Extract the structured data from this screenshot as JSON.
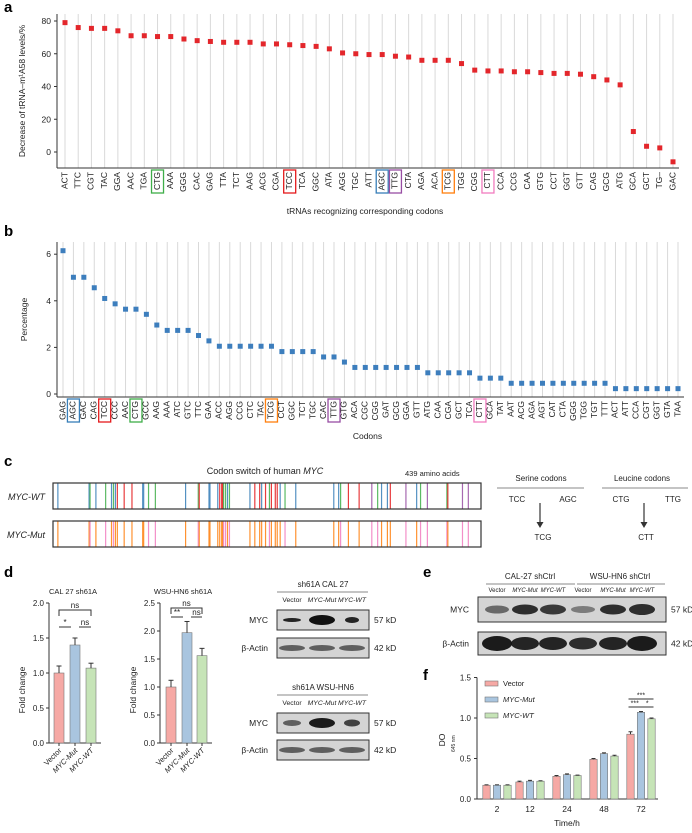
{
  "panel_labels": [
    "a",
    "b",
    "c",
    "d",
    "e",
    "f"
  ],
  "colors": {
    "marker_a": "#e3262b",
    "marker_b": "#3d7ebd",
    "TCC": "#e41a1c",
    "AGC": "#377eb8",
    "CTG": "#3fae49",
    "TTG": "#984ea3",
    "TCG": "#ff7f0e",
    "CTT": "#f17cbf",
    "bar_vector": "#f6a9a5",
    "bar_mut": "#a9c5df",
    "bar_wt": "#c6e4b7"
  },
  "chart_data": [
    {
      "type": "scatter",
      "title": "",
      "ylabel": "Decrease of tRNA–m¹A58 levels/%",
      "xlabel": "tRNAs recognizing corresponding codons",
      "ylim": [
        -10,
        83
      ],
      "yticks": [
        "0",
        "20",
        "40",
        "60",
        "80"
      ],
      "ytick_values": [
        0,
        20,
        40,
        60,
        80
      ],
      "grid": "vertical",
      "categories": [
        "ACT",
        "TTC",
        "CGT",
        "TAC",
        "GGA",
        "AAC",
        "TGA",
        "CTG",
        "AAA",
        "GGG",
        "CAC",
        "GAG",
        "TTA",
        "TCT",
        "AAG",
        "ACG",
        "CGA",
        "TCC",
        "TCA",
        "GGC",
        "ATA",
        "AGG",
        "TGC",
        "ATT",
        "AGC",
        "TTG",
        "CTA",
        "AGA",
        "ACA",
        "TCG",
        "TGG",
        "CGG",
        "CTT",
        "CCA",
        "CCG",
        "CAA",
        "GTG",
        "CCT",
        "GGT",
        "GTT",
        "CAG",
        "GCG",
        "ATG",
        "GCA",
        "GCT",
        "TG–",
        "GAC"
      ],
      "values": [
        79,
        76,
        75.5,
        75.5,
        74,
        71,
        71,
        70.5,
        70.5,
        69,
        68,
        67.5,
        67,
        67,
        67,
        66,
        66,
        65.5,
        65,
        64.5,
        63,
        60.5,
        60,
        59.5,
        59.5,
        58.5,
        58,
        56,
        56,
        56,
        54,
        50,
        49.5,
        49.5,
        49,
        49,
        48.5,
        48,
        48,
        47.5,
        46,
        44,
        41,
        12.5,
        3.5,
        2.5,
        -6
      ],
      "highlighted": [
        "CTG",
        "TCC",
        "AGC",
        "TTG",
        "TCG",
        "CTT"
      ]
    },
    {
      "type": "scatter",
      "title": "",
      "ylabel": "Percentage",
      "xlabel": "Codons",
      "ylim": [
        0,
        6.5
      ],
      "yticks": [
        "0",
        "2",
        "4",
        "6"
      ],
      "ytick_values": [
        0,
        2,
        4,
        6
      ],
      "grid": "vertical",
      "categories": [
        "GAG",
        "AGC",
        "GAC",
        "CAG",
        "TCC",
        "CCC",
        "AAC",
        "CTG",
        "GCC",
        "AAG",
        "AAA",
        "ATC",
        "GTC",
        "TTC",
        "GAA",
        "ACC",
        "AGG",
        "CCG",
        "CTC",
        "TAC",
        "TCG",
        "CCT",
        "GGC",
        "TCT",
        "TGC",
        "CAC",
        "TTG",
        "GTG",
        "ACA",
        "CGC",
        "CGG",
        "GAT",
        "GCG",
        "GGA",
        "GTT",
        "ATG",
        "CAA",
        "CGA",
        "GCT",
        "TCA",
        "CTT",
        "GCA",
        "TAT",
        "AAT",
        "ACG",
        "AGA",
        "AGT",
        "CAT",
        "CTA",
        "GGG",
        "TGG",
        "TGT",
        "TTT",
        "ACT",
        "ATT",
        "CCA",
        "CGT",
        "GGT",
        "GTA",
        "TAA"
      ],
      "values": [
        6.15,
        5.01,
        5.01,
        4.56,
        4.1,
        3.87,
        3.64,
        3.64,
        3.42,
        2.96,
        2.73,
        2.73,
        2.73,
        2.51,
        2.28,
        2.05,
        2.05,
        2.05,
        2.05,
        2.05,
        2.05,
        1.82,
        1.82,
        1.82,
        1.82,
        1.59,
        1.59,
        1.37,
        1.14,
        1.14,
        1.14,
        1.14,
        1.14,
        1.14,
        1.14,
        0.91,
        0.91,
        0.91,
        0.91,
        0.91,
        0.68,
        0.68,
        0.68,
        0.46,
        0.46,
        0.46,
        0.46,
        0.46,
        0.46,
        0.46,
        0.46,
        0.46,
        0.46,
        0.23,
        0.23,
        0.23,
        0.23,
        0.23,
        0.23,
        0.23
      ],
      "highlighted": [
        "AGC",
        "TCC",
        "CTG",
        "TCG",
        "TTG",
        "CTT"
      ]
    },
    {
      "type": "bar",
      "title": "CAL 27 sh61A",
      "ylabel": "Fold change",
      "categories": [
        "Vector",
        "MYC-Mut",
        "MYC-WT"
      ],
      "values": [
        1.0,
        1.4,
        1.07
      ],
      "errors": [
        0.1,
        0.1,
        0.07
      ],
      "ylim": [
        0,
        2.0
      ],
      "yticks": [
        "0.0",
        "0.5",
        "1.0",
        "1.5",
        "2.0"
      ],
      "ytick_values": [
        0,
        0.5,
        1.0,
        1.5,
        2.0
      ],
      "significance": [
        {
          "pair": [
            0,
            2
          ],
          "label": "ns",
          "level": 2
        },
        {
          "pair": [
            0,
            1
          ],
          "label": "*",
          "level": 1
        },
        {
          "pair": [
            1,
            2
          ],
          "label": "ns",
          "level": 1
        }
      ]
    },
    {
      "type": "bar",
      "title": "WSU-HN6 sh61A",
      "ylabel": "Fold change",
      "categories": [
        "Vector",
        "MYC-Mut",
        "MYC-WT"
      ],
      "values": [
        1.0,
        1.97,
        1.56
      ],
      "errors": [
        0.12,
        0.2,
        0.13
      ],
      "ylim": [
        0,
        2.5
      ],
      "yticks": [
        "0.0",
        "0.5",
        "1.0",
        "1.5",
        "2.0",
        "2.5"
      ],
      "ytick_values": [
        0,
        0.5,
        1.0,
        1.5,
        2.0,
        2.5
      ],
      "significance": [
        {
          "pair": [
            0,
            2
          ],
          "label": "ns",
          "level": 2
        },
        {
          "pair": [
            0,
            1
          ],
          "label": "**",
          "level": 1
        },
        {
          "pair": [
            1,
            2
          ],
          "label": "ns",
          "level": 1
        }
      ]
    },
    {
      "type": "bar",
      "title": "",
      "ylabel": "DO",
      "ylabel_sub": "645 nm",
      "xlabel": "Time/h",
      "categories": [
        "2",
        "12",
        "24",
        "48",
        "72"
      ],
      "series": [
        {
          "name": "Vector",
          "values": [
            0.17,
            0.21,
            0.28,
            0.49,
            0.8
          ],
          "errors": [
            0.005,
            0.01,
            0.01,
            0.01,
            0.03
          ]
        },
        {
          "name": "MYC-Mut",
          "values": [
            0.17,
            0.22,
            0.3,
            0.56,
            1.07
          ],
          "errors": [
            0.005,
            0.01,
            0.01,
            0.01,
            0.01
          ]
        },
        {
          "name": "MYC-WT",
          "values": [
            0.17,
            0.22,
            0.29,
            0.53,
            0.99
          ],
          "errors": [
            0.005,
            0.005,
            0.005,
            0.01,
            0.01
          ]
        }
      ],
      "ylim": [
        0,
        1.5
      ],
      "yticks": [
        "0.0",
        "0.5",
        "1.0",
        "1.5"
      ],
      "ytick_values": [
        0,
        0.5,
        1.0,
        1.5
      ],
      "legend": "top-left",
      "significance": [
        {
          "group": 4,
          "pair": [
            0,
            2
          ],
          "label": "***",
          "level": 2
        },
        {
          "group": 4,
          "pair": [
            0,
            1
          ],
          "label": "***",
          "level": 1
        },
        {
          "group": 4,
          "pair": [
            1,
            2
          ],
          "label": "*",
          "level": 1
        }
      ]
    }
  ],
  "codon_switch": {
    "title_prefix": "Codon switch of human ",
    "title_gene": "MYC",
    "length_label": "439 amino acids",
    "length": 439,
    "rows": [
      "MYC-WT",
      "MYC-Mut"
    ],
    "sites": [
      [
        5,
        "AGC"
      ],
      [
        37,
        "AGC"
      ],
      [
        38,
        "CTG"
      ],
      [
        44,
        "AGC"
      ],
      [
        54,
        "CTG"
      ],
      [
        60,
        "AGC"
      ],
      [
        62,
        "CTG"
      ],
      [
        64,
        "AGC"
      ],
      [
        66,
        "TCC"
      ],
      [
        73,
        "TCC"
      ],
      [
        81,
        "TCC"
      ],
      [
        92,
        "AGC"
      ],
      [
        93,
        "AGC"
      ],
      [
        98,
        "CTG"
      ],
      [
        105,
        "CTG"
      ],
      [
        136,
        "AGC"
      ],
      [
        149,
        "CTG"
      ],
      [
        150,
        "TCC"
      ],
      [
        160,
        "AGC"
      ],
      [
        161,
        "AGC"
      ],
      [
        169,
        "AGC"
      ],
      [
        171,
        "TCC"
      ],
      [
        173,
        "TCC"
      ],
      [
        174,
        "TCC"
      ],
      [
        175,
        "CTG"
      ],
      [
        177,
        "CTG"
      ],
      [
        179,
        "AGC"
      ],
      [
        181,
        "CTG"
      ],
      [
        202,
        "AGC"
      ],
      [
        207,
        "TCC"
      ],
      [
        212,
        "TCC"
      ],
      [
        214,
        "AGC"
      ],
      [
        218,
        "TCC"
      ],
      [
        222,
        "CTG"
      ],
      [
        224,
        "TCC"
      ],
      [
        228,
        "TCC"
      ],
      [
        230,
        "TCC"
      ],
      [
        233,
        "AGC"
      ],
      [
        238,
        "CTG"
      ],
      [
        249,
        "AGC"
      ],
      [
        288,
        "AGC"
      ],
      [
        293,
        "AGC"
      ],
      [
        295,
        "CTG"
      ],
      [
        303,
        "TCC"
      ],
      [
        314,
        "TCC"
      ],
      [
        327,
        "TTG"
      ],
      [
        333,
        "CTG"
      ],
      [
        337,
        "AGC"
      ],
      [
        343,
        "AGC"
      ],
      [
        346,
        "TCC"
      ],
      [
        362,
        "TTG"
      ],
      [
        373,
        "AGC"
      ],
      [
        377,
        "CTG"
      ],
      [
        384,
        "TTG"
      ],
      [
        404,
        "CTG"
      ],
      [
        405,
        "TCC"
      ],
      [
        420,
        "TTG"
      ],
      [
        426,
        "TTG"
      ]
    ],
    "switch_map": {
      "TCC": "TCG",
      "AGC": "TCG",
      "CTG": "CTT",
      "TTG": "CTT"
    },
    "legend": {
      "serine_title": "Serine codons",
      "leucine_title": "Leucine codons",
      "serine_from": [
        "TCC",
        "AGC"
      ],
      "serine_to": "TCG",
      "leucine_from": [
        "CTG",
        "TTG"
      ],
      "leucine_to": "CTT"
    }
  },
  "western_blots": {
    "d": [
      {
        "title": "sh61A CAL 27",
        "lanes": [
          "Vector",
          "MYC-Mut",
          "MYC-WT"
        ],
        "rows": [
          {
            "label": "MYC",
            "size": "57 kD"
          },
          {
            "label": "β-Actin",
            "size": "42 kD"
          }
        ]
      },
      {
        "title": "sh61A WSU-HN6",
        "lanes": [
          "Vector",
          "MYC-Mut",
          "MYC-WT"
        ],
        "rows": [
          {
            "label": "MYC",
            "size": "57 kD"
          },
          {
            "label": "β-Actin",
            "size": "42 kD"
          }
        ]
      }
    ],
    "e": {
      "groups": [
        "CAL-27 shCtrl",
        "WSU-HN6 shCtrl"
      ],
      "lanes": [
        "Vector",
        "MYC-Mut",
        "MYC-WT",
        "Vector",
        "MYC-Mut",
        "MYC-WT"
      ],
      "rows": [
        {
          "label": "MYC",
          "size": "57 kD"
        },
        {
          "label": "β-Actin",
          "size": "42 kD"
        }
      ]
    }
  }
}
